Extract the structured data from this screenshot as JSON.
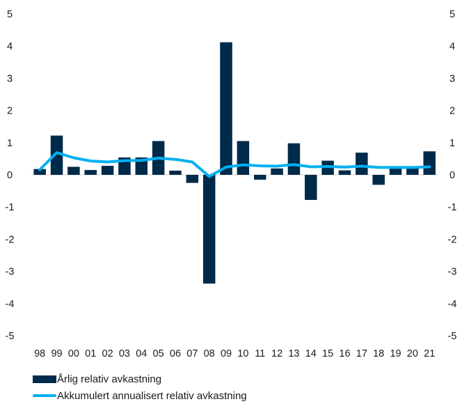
{
  "chart_data": {
    "type": "bar",
    "title": "",
    "xlabel": "",
    "ylabel": "",
    "ylim": [
      -5,
      5
    ],
    "yticks": [
      "5",
      "4",
      "3",
      "2",
      "1",
      "0",
      "-1",
      "-2",
      "-3",
      "-4",
      "-5"
    ],
    "categories": [
      "98",
      "99",
      "00",
      "01",
      "02",
      "03",
      "04",
      "05",
      "06",
      "07",
      "08",
      "09",
      "10",
      "11",
      "12",
      "13",
      "14",
      "15",
      "16",
      "17",
      "18",
      "19",
      "20",
      "21"
    ],
    "grid": false,
    "legend_position": "bottom-left",
    "series": [
      {
        "name": "Årlig relativ avkastning",
        "type": "bar",
        "color": "#002a4a",
        "values": [
          0.18,
          1.22,
          0.25,
          0.15,
          0.28,
          0.54,
          0.54,
          1.05,
          0.13,
          -0.25,
          -3.38,
          4.12,
          1.05,
          -0.15,
          0.2,
          0.98,
          -0.78,
          0.44,
          0.14,
          0.69,
          -0.31,
          0.2,
          0.2,
          0.73
        ]
      },
      {
        "name": "Akkumulert annualisert relativ avkastning",
        "type": "line",
        "color": "#00b0f0",
        "values": [
          0.16,
          0.69,
          0.53,
          0.43,
          0.4,
          0.44,
          0.45,
          0.52,
          0.48,
          0.4,
          -0.05,
          0.24,
          0.31,
          0.28,
          0.27,
          0.32,
          0.25,
          0.26,
          0.24,
          0.27,
          0.23,
          0.23,
          0.23,
          0.25
        ]
      }
    ]
  }
}
